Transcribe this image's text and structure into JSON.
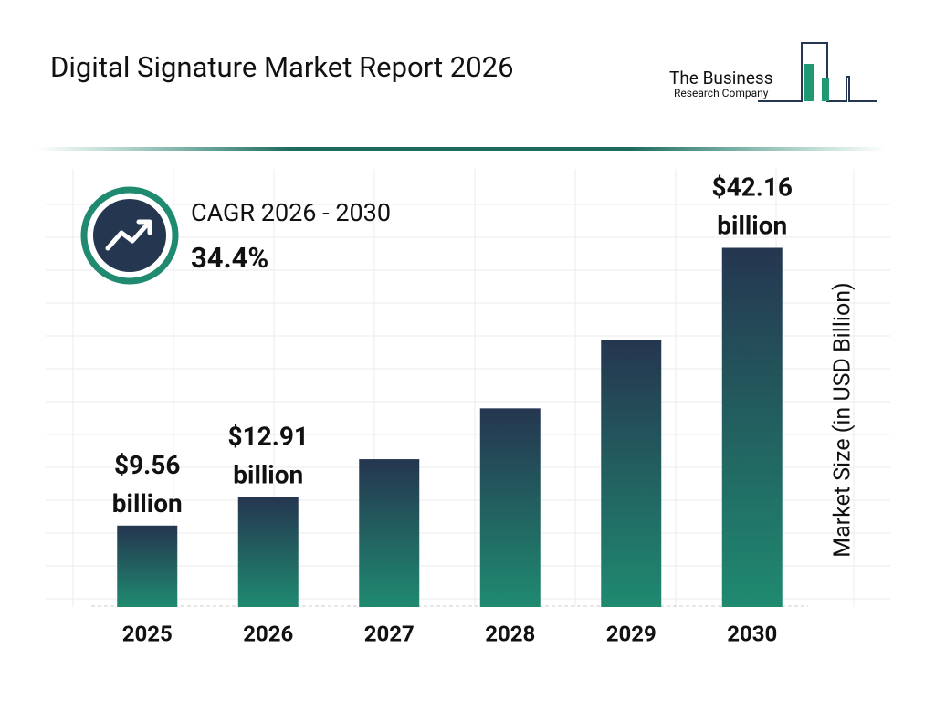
{
  "chart_data": {
    "type": "bar",
    "title": "Digital Signature Market Report 2026",
    "logo": [
      "The Business",
      "Research Company"
    ],
    "cagr_label": "CAGR 2026 - 2030",
    "cagr_value": "34.4%",
    "y_label": "Market Size (in USD Billion)",
    "categories": [
      "2025",
      "2026",
      "2027",
      "2028",
      "2029",
      "2030"
    ],
    "values": [
      9.56,
      12.91,
      17.35,
      23.32,
      31.34,
      42.16
    ],
    "value_labels": [
      "$9.56 billion",
      "$12.91 billion",
      null,
      null,
      null,
      "$42.16 billion"
    ],
    "colors": [
      "#253650",
      "#1f8a70"
    ],
    "ylim": [
      0,
      45
    ]
  }
}
